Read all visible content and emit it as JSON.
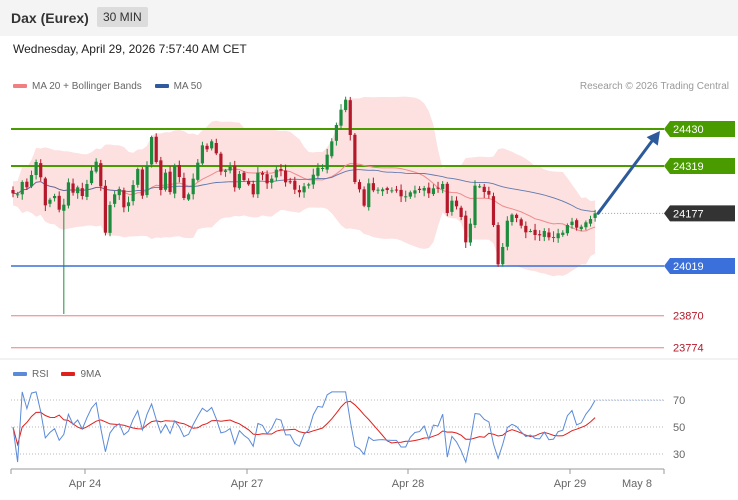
{
  "header": {
    "instrument": "Dax (Eurex)",
    "timeframe": "30 MIN",
    "datetime": "Wednesday, April 29, 2026 7:57:40 AM CET",
    "credit": "Research © 2026 Trading Central"
  },
  "legend_main": [
    {
      "label": "MA 20 + Bollinger Bands",
      "color": "#f08080"
    },
    {
      "label": "MA 50",
      "color": "#2f5b9e"
    }
  ],
  "legend_rsi": [
    {
      "label": "RSI",
      "color": "#5b8ad8"
    },
    {
      "label": "9MA",
      "color": "#e0201c"
    }
  ],
  "colors": {
    "up": "#1e8c3e",
    "down": "#b4182a",
    "resistance": "#4a9b00",
    "support": "#3b6fd9",
    "target": "#f0a0a0",
    "arrow": "#2c5a9a",
    "bollinger_fill": "#fde0e0",
    "current_tag": "#333333"
  },
  "chart_data": [
    {
      "type": "candlestick",
      "x_tick_labels": [
        "Apr 24",
        "Apr 27",
        "Apr 28",
        "Apr 29",
        "May 8"
      ],
      "ylim": [
        23720,
        24620
      ],
      "current_price": 24177,
      "levels": [
        {
          "kind": "resistance",
          "value": 24430,
          "label": "24430"
        },
        {
          "kind": "resistance",
          "value": 24319,
          "label": "24319"
        },
        {
          "kind": "current",
          "value": 24177,
          "label": "24177"
        },
        {
          "kind": "support",
          "value": 24019,
          "label": "24019"
        },
        {
          "kind": "target",
          "value": 23870,
          "label": "23870"
        },
        {
          "kind": "target",
          "value": 23774,
          "label": "23774"
        }
      ],
      "forecast_arrow": {
        "from": 24177,
        "to": 24430
      },
      "close_path": [
        24237,
        24234,
        24271,
        24255,
        24292,
        24331,
        24285,
        24201,
        24218,
        24229,
        24188,
        24203,
        24270,
        24239,
        24255,
        24229,
        24265,
        24305,
        24332,
        24258,
        24119,
        24202,
        24234,
        24250,
        24195,
        24210,
        24262,
        24310,
        24230,
        24319,
        24406,
        24331,
        24247,
        24299,
        24241,
        24320,
        24286,
        24223,
        24234,
        24281,
        24329,
        24381,
        24369,
        24393,
        24357,
        24302,
        24306,
        24316,
        24255,
        24295,
        24277,
        24264,
        24234,
        24299,
        24293,
        24267,
        24281,
        24308,
        24305,
        24270,
        24270,
        24248,
        24240,
        24258,
        24264,
        24293,
        24314,
        24313,
        24353,
        24393,
        24442,
        24488,
        24518,
        24412,
        24271,
        24249,
        24200,
        24267,
        24246,
        24248,
        24249,
        24247,
        24246,
        24246,
        24228,
        24228,
        24240,
        24246,
        24247,
        24253,
        24237,
        24252,
        24251,
        24265,
        24178,
        24215,
        24198,
        24166,
        24090,
        24146,
        24260,
        24258,
        24241,
        24233,
        24142,
        24024,
        24076,
        24155,
        24173,
        24163,
        24140,
        24120,
        24124,
        24112,
        24111,
        24124,
        24105,
        24106,
        24117,
        24119,
        24142,
        24152,
        24134,
        24137,
        24150,
        24160,
        24177
      ],
      "rsi": {
        "ylim": [
          20,
          80
        ],
        "levels": [
          70,
          50,
          30
        ]
      }
    }
  ]
}
